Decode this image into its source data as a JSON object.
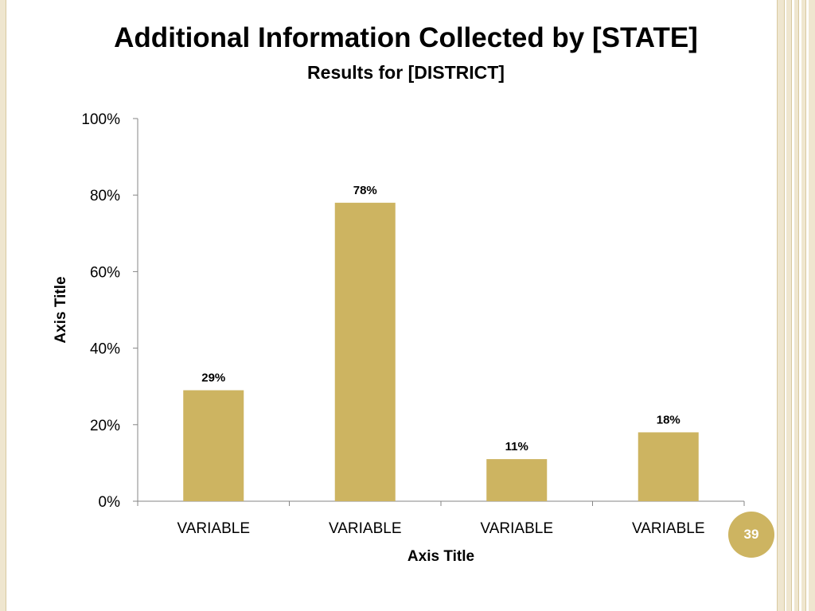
{
  "slide": {
    "title": "Additional Information Collected by [STATE]",
    "subtitle": "Results for [DISTRICT]",
    "slide_number": "39",
    "colors": {
      "bar": "#cdb461",
      "accent": "#cdb461",
      "border_stripe": "#efe6cf"
    }
  },
  "chart_data": {
    "type": "bar",
    "categories": [
      "VARIABLE",
      "VARIABLE",
      "VARIABLE",
      "VARIABLE"
    ],
    "values": [
      29,
      78,
      11,
      18
    ],
    "data_labels": [
      "29%",
      "78%",
      "11%",
      "18%"
    ],
    "xlabel": "Axis Title",
    "ylabel": "Axis Title",
    "ylim": [
      0,
      100
    ],
    "yticks": [
      0,
      20,
      40,
      60,
      80,
      100
    ],
    "ytick_labels": [
      "0%",
      "20%",
      "40%",
      "60%",
      "80%",
      "100%"
    ],
    "grid": false,
    "legend": "none"
  }
}
